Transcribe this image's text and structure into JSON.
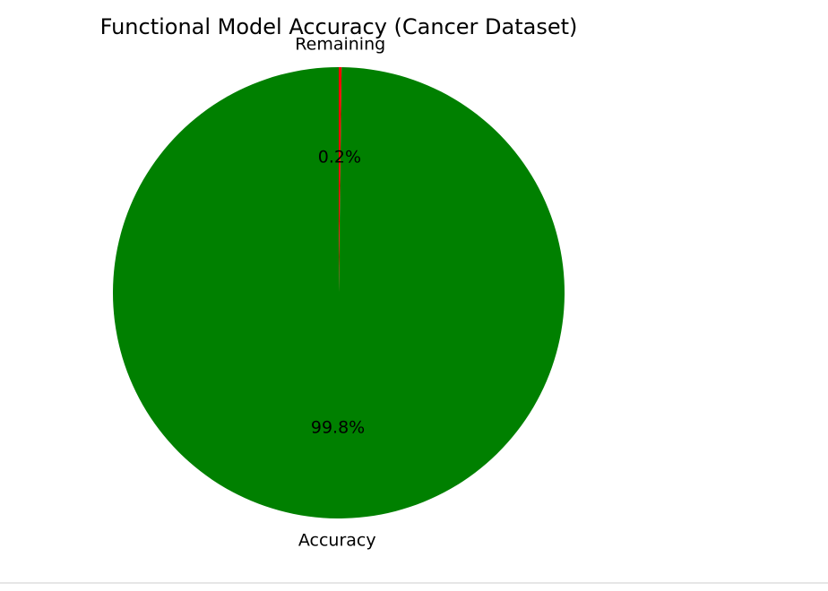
{
  "chart_data": {
    "type": "pie",
    "title": "Functional Model Accuracy (Cancer Dataset)",
    "start_angle_deg": 90,
    "counterclock": true,
    "slices": [
      {
        "label": "Accuracy",
        "value": 99.8,
        "pct_label": "99.8%",
        "color": "#008000"
      },
      {
        "label": "Remaining",
        "value": 0.2,
        "pct_label": "0.2%",
        "color": "#ff0000"
      }
    ]
  }
}
